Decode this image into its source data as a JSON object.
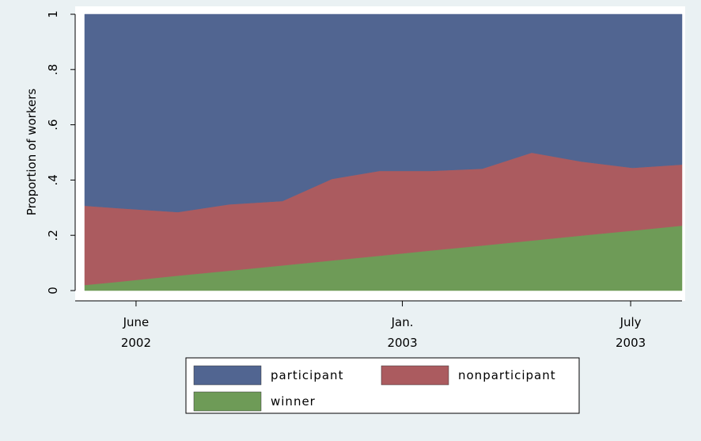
{
  "chart_data": {
    "type": "stacked-area",
    "y_label": "Proportion of workers",
    "x": [
      -1.35,
      -0.45,
      1.1,
      2.45,
      3.85,
      5.15,
      6.4,
      7.75,
      9.1,
      10.4,
      11.7,
      13.05,
      14.35
    ],
    "xlim": [
      -1.6,
      14.35
    ],
    "xticks": [
      {
        "value": 0,
        "label": "June 2002"
      },
      {
        "value": 7,
        "label": "Jan. 2003"
      },
      {
        "value": 13,
        "label": "July 2003"
      }
    ],
    "ylim": [
      0,
      1
    ],
    "yticks": [
      0,
      {
        "value": 0.2,
        "label": ".2"
      },
      {
        "value": 0.4,
        "label": ".4"
      },
      {
        "value": 0.6,
        "label": ".6"
      },
      {
        "value": 0.8,
        "label": ".8"
      },
      1
    ],
    "series": [
      {
        "name": "winner",
        "color": "#6e9b57",
        "values": [
          0.02,
          0.032,
          0.054,
          0.072,
          0.091,
          0.109,
          0.126,
          0.145,
          0.163,
          0.181,
          0.199,
          0.217,
          0.235
        ]
      },
      {
        "name": "nonparticipant",
        "color": "#ab5b5f",
        "values": [
          0.287,
          0.266,
          0.23,
          0.24,
          0.233,
          0.295,
          0.307,
          0.288,
          0.278,
          0.318,
          0.268,
          0.227,
          0.221
        ]
      },
      {
        "name": "participant",
        "color": "#516591",
        "values": [
          0.693,
          0.702,
          0.716,
          0.688,
          0.676,
          0.596,
          0.567,
          0.567,
          0.559,
          0.501,
          0.533,
          0.556,
          0.544
        ]
      }
    ],
    "legend_order": [
      "participant",
      "nonparticipant",
      "winner"
    ]
  }
}
